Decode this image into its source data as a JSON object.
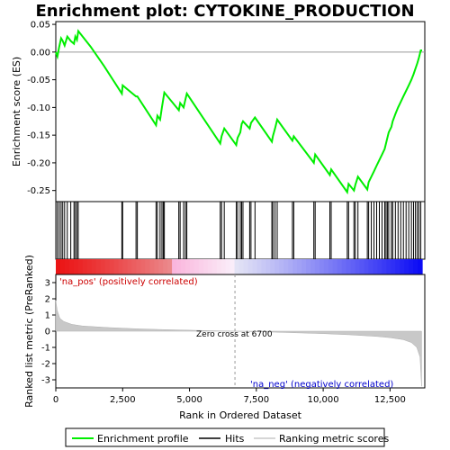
{
  "chart_data": {
    "type": "line",
    "title": "Enrichment plot: CYTOKINE_PRODUCTION",
    "xlabel": "Rank in Ordered Dataset",
    "top_panel": {
      "ylabel": "Enrichment score (ES)",
      "ylim": [
        -0.27,
        0.055
      ],
      "yticks": [
        0.05,
        0.0,
        -0.05,
        -0.1,
        -0.15,
        -0.2,
        -0.25
      ],
      "ytick_labels": [
        "0.05",
        "0.00",
        "-0.05",
        "-0.10",
        "-0.15",
        "-0.20",
        "-0.25"
      ],
      "series_name": "Enrichment profile",
      "color": "#00ee00",
      "es_points": [
        [
          0,
          0.0
        ],
        [
          60,
          -0.008
        ],
        [
          120,
          0.008
        ],
        [
          200,
          0.025
        ],
        [
          260,
          0.02
        ],
        [
          330,
          0.012
        ],
        [
          430,
          0.028
        ],
        [
          560,
          0.02
        ],
        [
          680,
          0.015
        ],
        [
          730,
          0.028
        ],
        [
          790,
          0.022
        ],
        [
          840,
          0.038
        ],
        [
          1300,
          0.01
        ],
        [
          1800,
          -0.025
        ],
        [
          2470,
          -0.075
        ],
        [
          2500,
          -0.06
        ],
        [
          3000,
          -0.08
        ],
        [
          3050,
          -0.08
        ],
        [
          3750,
          -0.132
        ],
        [
          3800,
          -0.115
        ],
        [
          3900,
          -0.122
        ],
        [
          3970,
          -0.1
        ],
        [
          4020,
          -0.085
        ],
        [
          4060,
          -0.073
        ],
        [
          4600,
          -0.105
        ],
        [
          4650,
          -0.092
        ],
        [
          4780,
          -0.1
        ],
        [
          4850,
          -0.085
        ],
        [
          4900,
          -0.075
        ],
        [
          6150,
          -0.165
        ],
        [
          6200,
          -0.152
        ],
        [
          6300,
          -0.138
        ],
        [
          6750,
          -0.168
        ],
        [
          6800,
          -0.155
        ],
        [
          6900,
          -0.145
        ],
        [
          6950,
          -0.13
        ],
        [
          7000,
          -0.125
        ],
        [
          7250,
          -0.138
        ],
        [
          7300,
          -0.128
        ],
        [
          7450,
          -0.118
        ],
        [
          8080,
          -0.162
        ],
        [
          8120,
          -0.152
        ],
        [
          8200,
          -0.138
        ],
        [
          8280,
          -0.122
        ],
        [
          8850,
          -0.16
        ],
        [
          8900,
          -0.152
        ],
        [
          9650,
          -0.2
        ],
        [
          9700,
          -0.185
        ],
        [
          10250,
          -0.222
        ],
        [
          10300,
          -0.212
        ],
        [
          10900,
          -0.253
        ],
        [
          10950,
          -0.238
        ],
        [
          11150,
          -0.25
        ],
        [
          11200,
          -0.24
        ],
        [
          11300,
          -0.225
        ],
        [
          11650,
          -0.248
        ],
        [
          11700,
          -0.235
        ],
        [
          11800,
          -0.225
        ],
        [
          11900,
          -0.215
        ],
        [
          12000,
          -0.205
        ],
        [
          12100,
          -0.195
        ],
        [
          12200,
          -0.185
        ],
        [
          12300,
          -0.175
        ],
        [
          12350,
          -0.165
        ],
        [
          12400,
          -0.155
        ],
        [
          12450,
          -0.145
        ],
        [
          12550,
          -0.135
        ],
        [
          12600,
          -0.125
        ],
        [
          12700,
          -0.112
        ],
        [
          12800,
          -0.1
        ],
        [
          12900,
          -0.09
        ],
        [
          13000,
          -0.08
        ],
        [
          13100,
          -0.07
        ],
        [
          13200,
          -0.06
        ],
        [
          13300,
          -0.05
        ],
        [
          13380,
          -0.04
        ],
        [
          13450,
          -0.03
        ],
        [
          13520,
          -0.02
        ],
        [
          13580,
          -0.01
        ],
        [
          13650,
          0.003
        ],
        [
          13700,
          0.003
        ]
      ]
    },
    "hits": [
      60,
      130,
      200,
      260,
      330,
      430,
      560,
      680,
      730,
      790,
      840,
      2470,
      2500,
      3000,
      3050,
      3750,
      3800,
      3900,
      3970,
      4020,
      4060,
      4600,
      4650,
      4780,
      4850,
      4900,
      6150,
      6200,
      6300,
      6750,
      6800,
      6900,
      6950,
      7000,
      7250,
      7300,
      7450,
      8080,
      8120,
      8200,
      8280,
      8850,
      8900,
      9650,
      9700,
      10250,
      10300,
      10900,
      10950,
      11150,
      11200,
      11300,
      11650,
      11700,
      11800,
      11900,
      12000,
      12100,
      12200,
      12300,
      12350,
      12400,
      12450,
      12550,
      12600,
      12700,
      12800,
      12900,
      13000,
      13100,
      13200,
      13300,
      13380,
      13450,
      13520,
      13580,
      13650
    ],
    "bottom_panel": {
      "ylabel": "Ranked list metric (PreRanked)",
      "ylim": [
        -3.5,
        3.5
      ],
      "yticks": [
        3,
        2,
        1,
        0,
        -1,
        -2,
        -3
      ],
      "ytick_labels": [
        "3",
        "2",
        "1",
        "0",
        "-1",
        "-2",
        "-3"
      ],
      "metric_points": [
        [
          0,
          1.9
        ],
        [
          50,
          1.3
        ],
        [
          150,
          0.8
        ],
        [
          300,
          0.6
        ],
        [
          600,
          0.42
        ],
        [
          1000,
          0.32
        ],
        [
          2000,
          0.22
        ],
        [
          3000,
          0.15
        ],
        [
          4000,
          0.1
        ],
        [
          5000,
          0.06
        ],
        [
          6000,
          0.02
        ],
        [
          6700,
          0.0
        ],
        [
          8000,
          -0.05
        ],
        [
          9000,
          -0.1
        ],
        [
          10000,
          -0.15
        ],
        [
          11000,
          -0.22
        ],
        [
          12000,
          -0.32
        ],
        [
          12500,
          -0.4
        ],
        [
          13000,
          -0.52
        ],
        [
          13300,
          -0.7
        ],
        [
          13500,
          -1.0
        ],
        [
          13620,
          -1.6
        ],
        [
          13680,
          -3.4
        ]
      ]
    },
    "xlim": [
      0,
      13800
    ],
    "xticks": [
      0,
      2500,
      5000,
      7500,
      10000,
      12500
    ],
    "xtick_labels": [
      "0",
      "2,500",
      "5,000",
      "7,500",
      "10,000",
      "12,500"
    ],
    "zero_cross": 6700,
    "annotations": {
      "pos": "'na_pos' (positively correlated)",
      "neg": "'na_neg' (negatively correlated)",
      "zero": "Zero cross at 6700"
    },
    "legend": {
      "items": [
        "Enrichment profile",
        "Hits",
        "Ranking metric scores"
      ],
      "placement": "bottom"
    }
  }
}
